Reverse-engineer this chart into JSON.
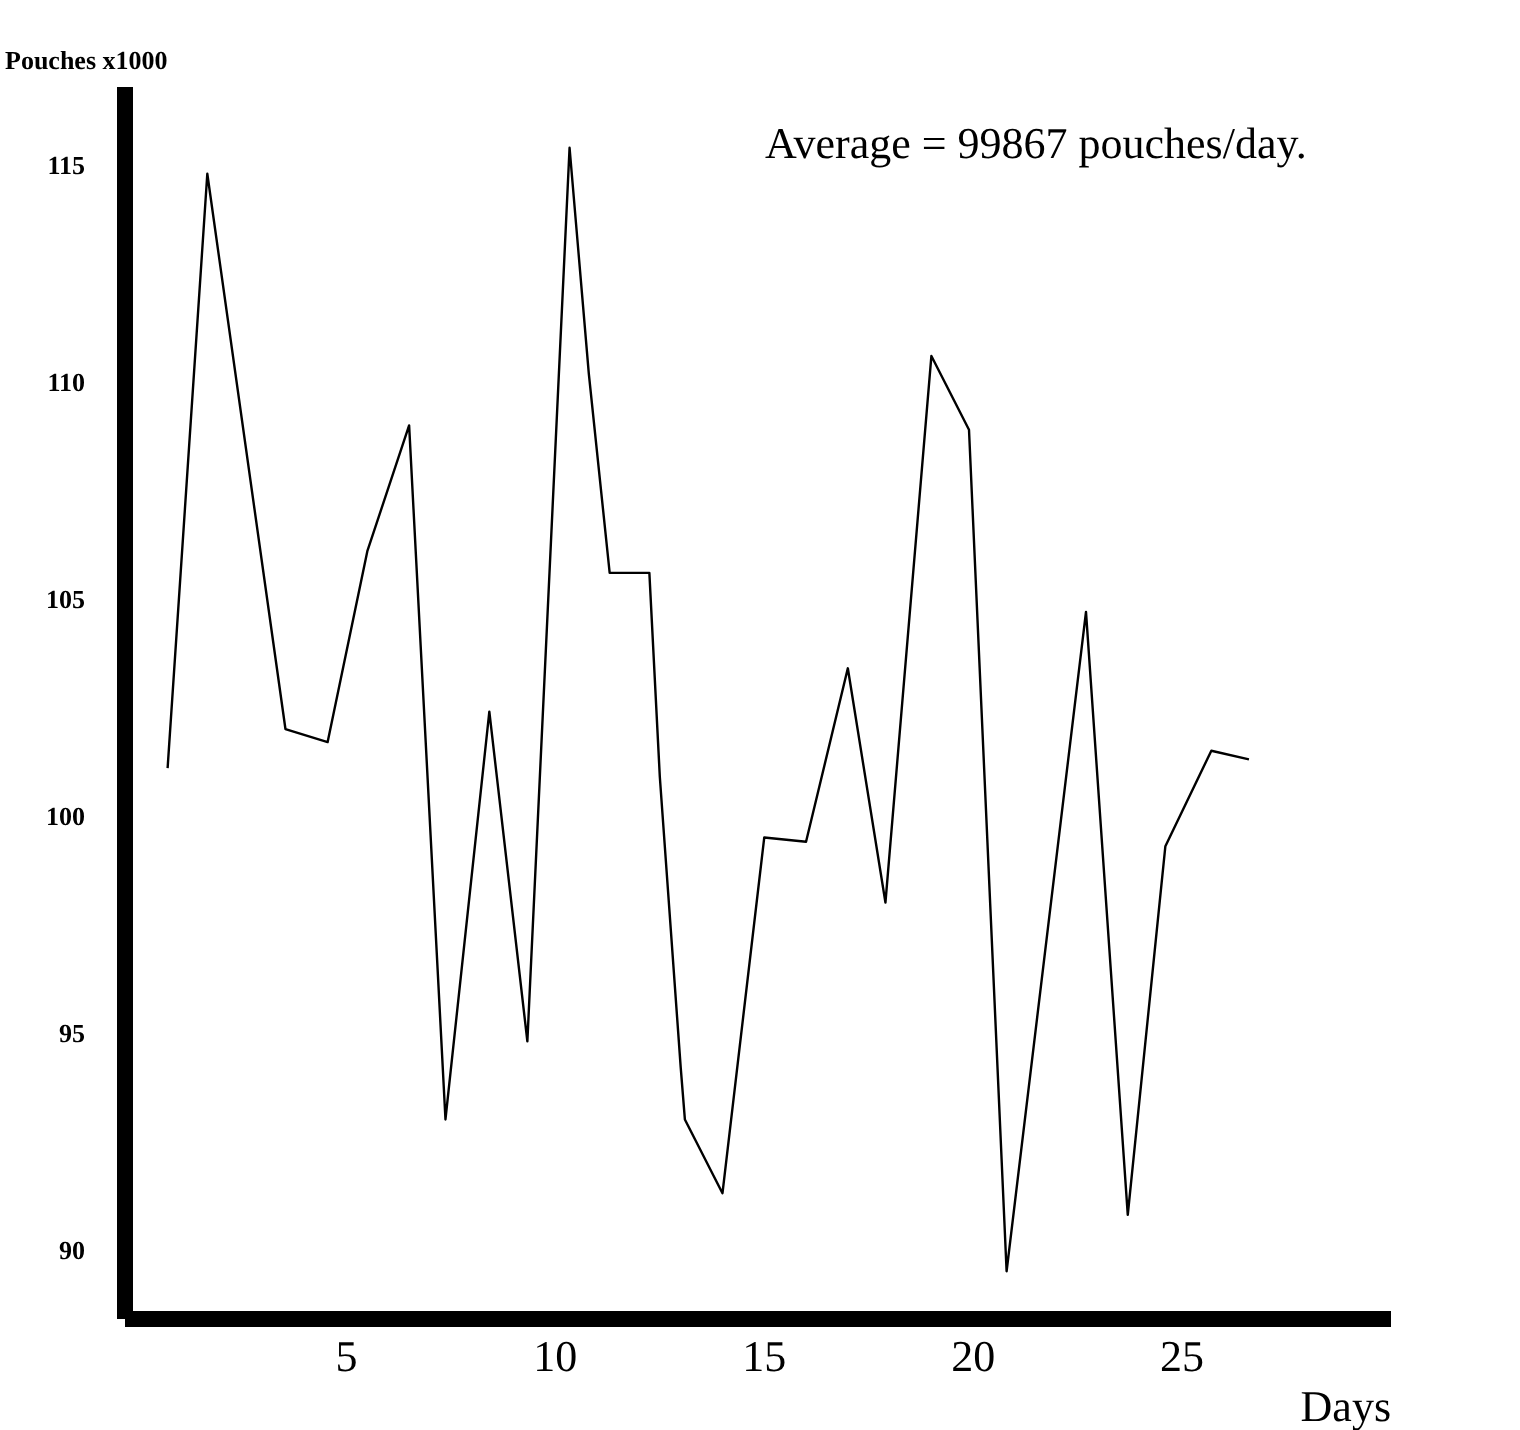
{
  "chart_data": {
    "type": "line",
    "ylabel": "Pouches x1000",
    "xlabel": "Days",
    "annotations": [
      "Average = 99867 pouches/day."
    ],
    "series": [
      {
        "color": "#000000",
        "x": [
          0.72,
          1.67,
          3.54,
          4.55,
          5.5,
          6.5,
          7.37,
          8.42,
          9.33,
          10.34,
          10.8,
          11.3,
          12.25,
          12.5,
          13.0,
          13.1,
          14.0,
          15.0,
          16.0,
          17.0,
          17.9,
          19.0,
          19.9,
          20.8,
          22.7,
          23.7,
          24.6,
          25.7,
          26.6
        ],
        "values": [
          101.1,
          114.8,
          102.0,
          101.7,
          106.1,
          109.0,
          93.0,
          102.4,
          94.8,
          115.4,
          110.2,
          105.6,
          105.6,
          100.9,
          94.2,
          93.0,
          91.3,
          99.5,
          99.4,
          103.4,
          98.0,
          110.6,
          108.9,
          89.5,
          104.7,
          90.8,
          99.3,
          101.5,
          101.3
        ]
      }
    ],
    "xlim": [
      -0.3,
      30
    ],
    "ylim": [
      88.4,
      116.8
    ],
    "xticks": [
      5,
      10,
      15,
      20,
      25
    ],
    "yticks": [
      90,
      95,
      100,
      105,
      110,
      115
    ],
    "grid": false,
    "marker": "none",
    "line_style": "solid"
  }
}
